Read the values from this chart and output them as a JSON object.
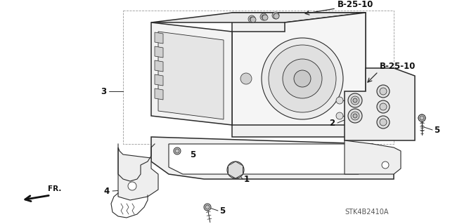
{
  "bg_color": "#ffffff",
  "lc": "#2a2a2a",
  "part_number_top": "B-25-10",
  "part_number_mid": "B-25-10",
  "part_ref": "STK4B2410A",
  "figsize": [
    6.4,
    3.19
  ],
  "dpi": 100
}
